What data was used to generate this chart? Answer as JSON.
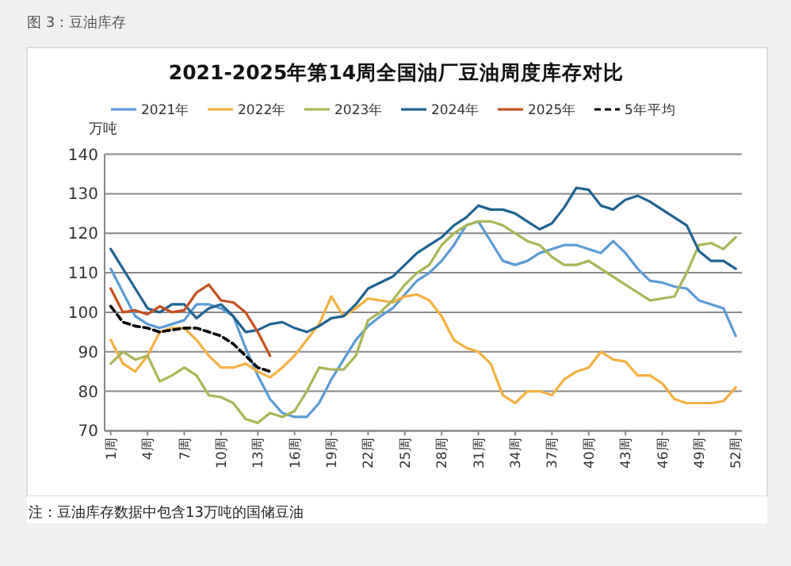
{
  "chart_data": {
    "type": "line",
    "title": "2021-2025年第14周全国油厂豆油周度库存对比",
    "ylabel": "万吨",
    "annotations": [
      "图 3：豆油库存",
      "注：豆油库存数据中包含13万吨的国储豆油"
    ],
    "categories": [
      "1周",
      null,
      null,
      "4周",
      null,
      null,
      "7周",
      null,
      null,
      "10周",
      null,
      null,
      "13周",
      null,
      null,
      "16周",
      null,
      null,
      "19周",
      null,
      null,
      "22周",
      null,
      null,
      "25周",
      null,
      null,
      "28周",
      null,
      null,
      "31周",
      null,
      null,
      "34周",
      null,
      null,
      "37周",
      null,
      null,
      "40周",
      null,
      null,
      "43周",
      null,
      null,
      "46周",
      null,
      null,
      "49周",
      null,
      null,
      "52周"
    ],
    "ylim": [
      70,
      140
    ],
    "yticks": [
      70,
      80,
      90,
      100,
      110,
      120,
      130,
      140
    ],
    "grid": "y",
    "legend": "top",
    "marker": "none",
    "series": [
      {
        "name": "2021年",
        "color": "#5b9bd5",
        "values": [
          111,
          105,
          99,
          97,
          96,
          97,
          98,
          102,
          102,
          101,
          99,
          91,
          84,
          78,
          74.5,
          73.5,
          73.5,
          77,
          83,
          88,
          93,
          96.5,
          99,
          101,
          104.5,
          108,
          110,
          113,
          117,
          122,
          123,
          118,
          113,
          112,
          113,
          115,
          116,
          117,
          117,
          116,
          115,
          118,
          115,
          111,
          108,
          107.5,
          106.5,
          106,
          103,
          102,
          101,
          94
        ]
      },
      {
        "name": "2022年",
        "color": "#f4b042",
        "values": [
          93,
          87,
          85,
          89,
          95,
          96,
          96,
          93,
          89,
          86,
          86,
          87,
          85,
          83.5,
          86,
          89,
          93,
          97,
          104,
          99,
          101,
          103.5,
          103,
          102.5,
          104,
          104.5,
          103,
          99,
          93,
          91,
          90,
          87,
          79,
          77,
          80,
          80,
          79,
          83,
          85,
          86,
          90,
          88,
          87.5,
          84,
          84,
          82,
          78,
          77,
          77,
          77,
          77.5,
          81
        ]
      },
      {
        "name": "2023年",
        "color": "#a9b65a",
        "values": [
          87,
          90,
          88,
          89,
          82.5,
          84,
          86,
          84,
          79,
          78.5,
          77,
          73,
          72,
          74.5,
          73.5,
          75,
          80,
          86,
          85.5,
          85.5,
          89,
          98,
          100,
          103,
          107,
          110,
          112,
          117,
          120,
          122,
          123,
          123,
          122,
          120,
          118,
          117,
          114,
          112,
          112,
          113,
          111,
          109,
          107,
          105,
          103,
          103.5,
          104,
          110,
          117,
          117.5,
          116,
          119
        ]
      },
      {
        "name": "2024年",
        "color": "#1f6391",
        "values": [
          116,
          111,
          106,
          101,
          100,
          102,
          102,
          98.5,
          101,
          102,
          99,
          95,
          95.5,
          97,
          97.5,
          96,
          95,
          96.5,
          98.5,
          99,
          102,
          106,
          107.5,
          109,
          112,
          115,
          117,
          119,
          122,
          124,
          127,
          126,
          126,
          125,
          123,
          121,
          122.5,
          126.5,
          131.5,
          131,
          127,
          126,
          128.5,
          129.5,
          128,
          126,
          124,
          122,
          115.5,
          113,
          113,
          111
        ]
      },
      {
        "name": "2025年",
        "color": "#c5501e",
        "values": [
          106,
          100,
          100.5,
          99.5,
          101.5,
          100,
          100.5,
          105,
          107,
          103,
          102.5,
          100,
          95,
          89,
          null,
          null,
          null,
          null,
          null,
          null,
          null,
          null,
          null,
          null,
          null,
          null,
          null,
          null,
          null,
          null,
          null,
          null,
          null,
          null,
          null,
          null,
          null,
          null,
          null,
          null,
          null,
          null,
          null,
          null,
          null,
          null,
          null,
          null,
          null,
          null,
          null,
          null
        ]
      },
      {
        "name": "5年平均",
        "color": "#000000",
        "line_style": "dashed",
        "values": [
          101.5,
          97.5,
          96.5,
          96,
          95,
          95.5,
          96,
          96,
          95,
          94,
          92,
          89,
          86,
          85,
          null,
          null,
          null,
          null,
          null,
          null,
          null,
          null,
          null,
          null,
          null,
          null,
          null,
          null,
          null,
          null,
          null,
          null,
          null,
          null,
          null,
          null,
          null,
          null,
          null,
          null,
          null,
          null,
          null,
          null,
          null,
          null,
          null,
          null,
          null,
          null,
          null,
          null
        ]
      }
    ]
  }
}
